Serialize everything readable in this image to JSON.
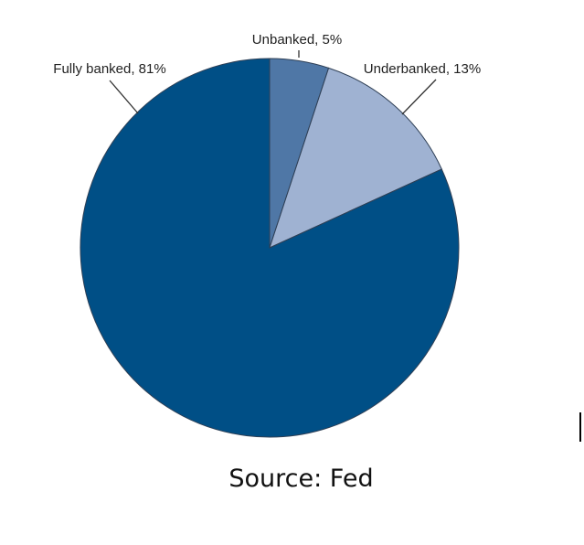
{
  "chart_data": {
    "type": "pie",
    "slices": [
      {
        "label": "Unbanked, 5%",
        "value": 5,
        "color": "#4f77a6"
      },
      {
        "label": "Underbanked, 13%",
        "value": 13,
        "color": "#9fb2d2"
      },
      {
        "label": "Fully banked, 81%",
        "value": 81,
        "color": "#004f86"
      }
    ],
    "start": "12 o'clock",
    "direction": "clockwise",
    "legend": "none"
  },
  "source": "Source: Fed"
}
